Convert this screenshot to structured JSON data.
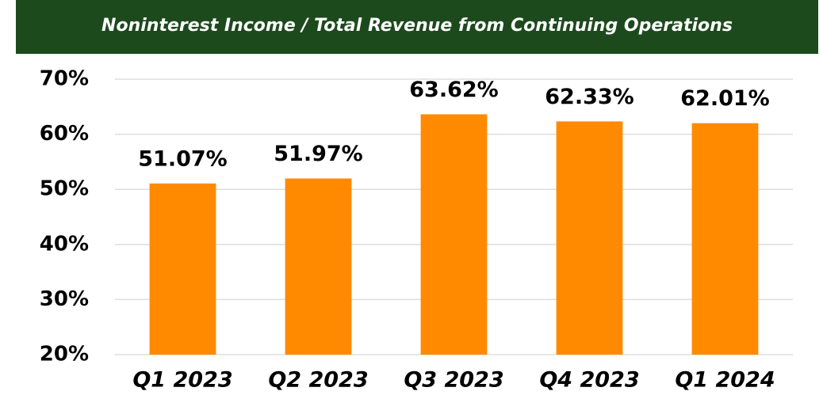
{
  "chart_data": {
    "type": "bar",
    "title": "Noninterest Income / Total Revenue from Continuing Operations",
    "categories": [
      "Q1 2023",
      "Q2 2023",
      "Q3 2023",
      "Q4 2023",
      "Q1 2024"
    ],
    "values": [
      51.07,
      51.97,
      63.62,
      62.33,
      62.01
    ],
    "value_labels": [
      "51.07%",
      "51.97%",
      "63.62%",
      "62.33%",
      "62.01%"
    ],
    "color": "#ff8a00",
    "ylim": [
      20,
      70
    ],
    "yticks": [
      {
        "value": 20,
        "label": "20%"
      },
      {
        "value": 30,
        "label": "30%"
      },
      {
        "value": 40,
        "label": "40%"
      },
      {
        "value": 50,
        "label": "50%"
      },
      {
        "value": 60,
        "label": "60%"
      },
      {
        "value": 70,
        "label": "70%"
      }
    ],
    "grid": true
  }
}
